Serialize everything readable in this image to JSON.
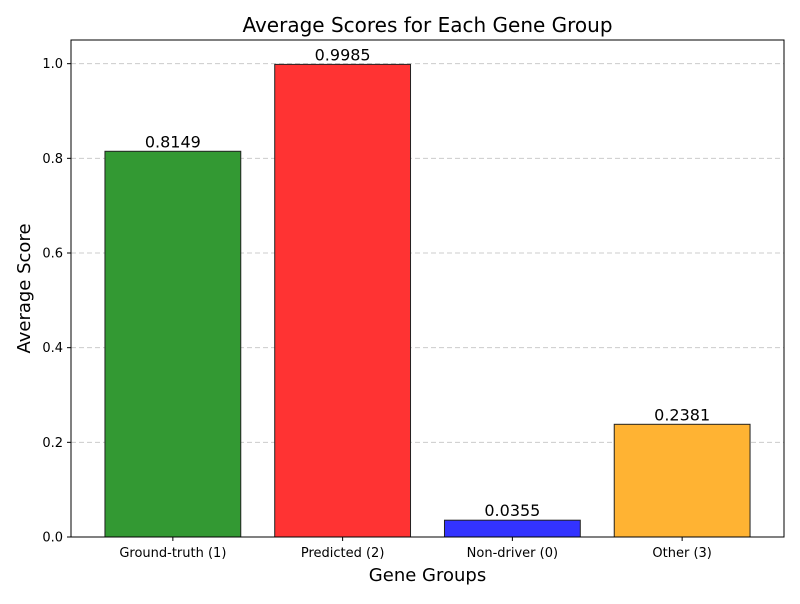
{
  "chart_data": {
    "type": "bar",
    "title": "Average Scores for Each Gene Group",
    "xlabel": "Gene Groups",
    "ylabel": "Average Score",
    "categories": [
      "Ground-truth (1)",
      "Predicted (2)",
      "Non-driver (0)",
      "Other (3)"
    ],
    "values": [
      0.8149,
      0.9985,
      0.0355,
      0.2381
    ],
    "value_labels": [
      "0.8149",
      "0.9985",
      "0.0355",
      "0.2381"
    ],
    "colors": [
      "#339933",
      "#ff3333",
      "#3333ff",
      "#ffb333"
    ],
    "edge_color": "#222222",
    "ylim": [
      0,
      1.05
    ],
    "yticks": [
      0.0,
      0.2,
      0.4,
      0.6,
      0.8,
      1.0
    ],
    "ytick_labels": [
      "0.0",
      "0.2",
      "0.4",
      "0.6",
      "0.8",
      "1.0"
    ],
    "grid": {
      "axis": "y",
      "style": "dashed",
      "color": "#cccccc"
    },
    "legend": "none"
  }
}
